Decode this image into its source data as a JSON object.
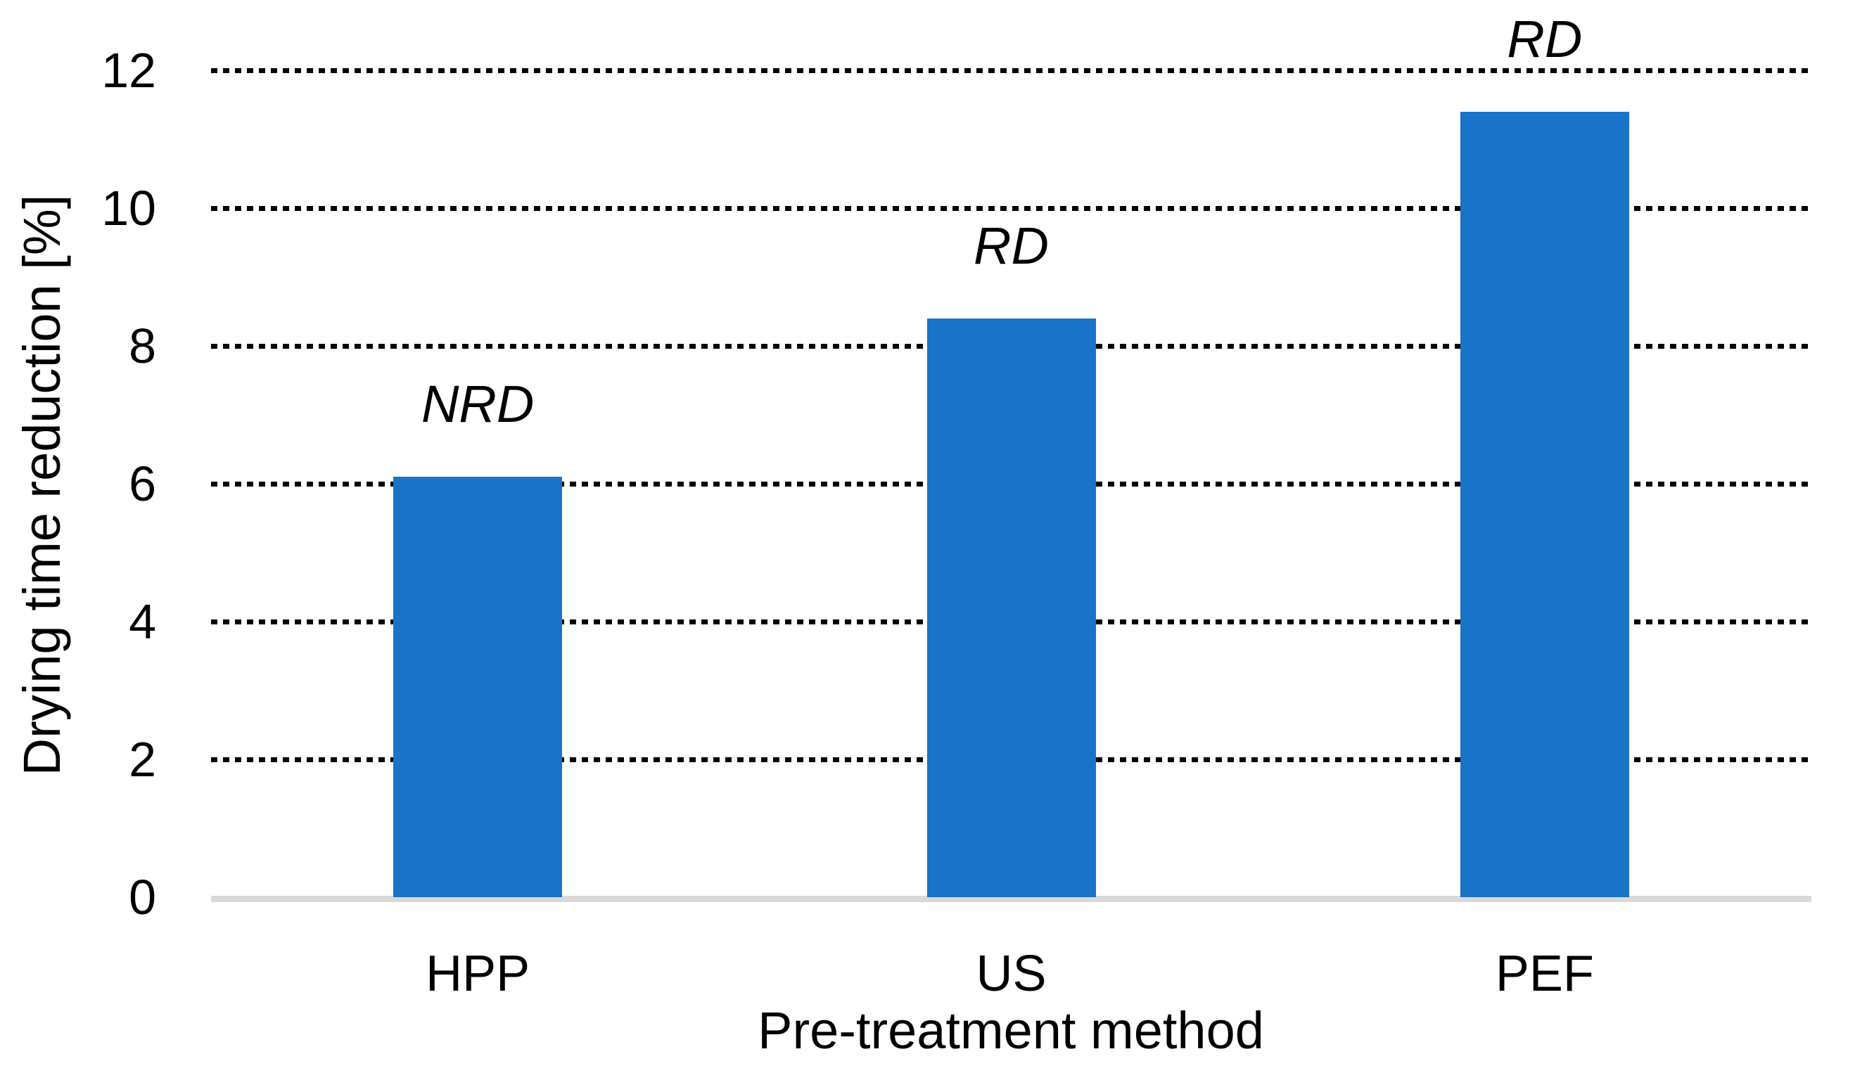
{
  "chart_data": {
    "type": "bar",
    "categories": [
      "HPP",
      "US",
      "PEF"
    ],
    "values": [
      6.1,
      8.4,
      11.4
    ],
    "bar_labels": [
      "NRD",
      "RD",
      "RD"
    ],
    "title": "",
    "xlabel": "Pre-treatment method",
    "ylabel": "Drying time reduction [%]",
    "ylim": [
      0,
      12
    ],
    "yticks": [
      0,
      2,
      4,
      6,
      8,
      10,
      12
    ],
    "grid": "horizontal-dotted",
    "legend": "none",
    "bar_color": "#1973C8",
    "gridline_color": "#000000",
    "axis_line_color": "#D9D9D9",
    "text_color": "#000000"
  }
}
